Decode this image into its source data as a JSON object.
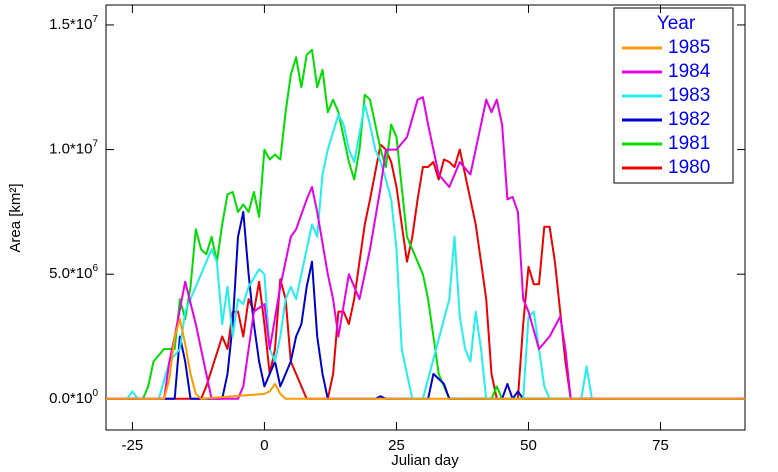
{
  "chart_data": {
    "type": "line",
    "xlabel": "Julian day",
    "ylabel": "Area [km²]",
    "legend_title": "Year",
    "legend": "upper right",
    "xlim": [
      -30,
      91
    ],
    "xticks": [
      -25,
      0,
      25,
      50,
      75
    ],
    "ylim": [
      -1250000,
      15800000
    ],
    "yticks": [
      {
        "value": 0,
        "label": "0.0*10",
        "exponent": "0"
      },
      {
        "value": 5000000,
        "label": "5.0*10",
        "exponent": "6"
      },
      {
        "value": 10000000,
        "label": "1.0*10",
        "exponent": "7"
      },
      {
        "value": 15000000,
        "label": "1.5*10",
        "exponent": "7"
      }
    ],
    "series": [
      {
        "name": "1985",
        "color": "#ff9900",
        "x": [
          -30,
          -19,
          -18,
          -17,
          -16,
          -15,
          -14,
          -13,
          -12,
          0,
          1,
          2,
          3,
          4,
          91
        ],
        "values": [
          0,
          0,
          800000,
          2500000,
          3200000,
          2200000,
          1000000,
          200000,
          0,
          200000,
          300000,
          600000,
          200000,
          0,
          0
        ]
      },
      {
        "name": "1984",
        "color": "#e600e6",
        "x": [
          -30,
          -19,
          -18,
          -17,
          -15,
          -13,
          -11,
          -10,
          -5,
          -4,
          -2,
          0,
          1,
          3,
          5,
          6,
          8,
          9,
          10,
          12,
          13,
          14,
          16,
          18,
          20,
          22,
          23,
          25,
          27,
          29,
          30,
          31,
          33,
          35,
          37,
          39,
          41,
          42,
          43,
          44,
          45,
          46,
          47,
          48,
          49,
          50,
          52,
          54,
          56,
          57,
          58,
          91
        ],
        "values": [
          0,
          0,
          1500000,
          2500000,
          4700000,
          3000000,
          1000000,
          0,
          0,
          500000,
          3500000,
          3800000,
          2000000,
          4500000,
          6500000,
          6800000,
          8000000,
          8500000,
          7500000,
          5000000,
          4000000,
          2500000,
          5000000,
          4000000,
          6000000,
          8500000,
          10000000,
          10000000,
          10500000,
          12000000,
          12100000,
          11000000,
          9000000,
          8500000,
          9500000,
          9000000,
          11000000,
          12000000,
          11500000,
          12000000,
          11000000,
          8000000,
          8100000,
          7500000,
          4000000,
          3500000,
          2000000,
          2500000,
          3300000,
          2000000,
          0,
          0
        ]
      },
      {
        "name": "1983",
        "color": "#22eeee",
        "x": [
          -30,
          -26,
          -25,
          -24,
          -20,
          -18,
          -16,
          -15,
          -13,
          -11,
          -10,
          -9,
          -8,
          -7,
          -6,
          -5,
          -4,
          -3,
          -1,
          0,
          1,
          2,
          3,
          4,
          5,
          6,
          7,
          9,
          10,
          11,
          12,
          14,
          15,
          16,
          17,
          19,
          20,
          21,
          22,
          23,
          24,
          25,
          26,
          27,
          28,
          30,
          35,
          36,
          37,
          38,
          39,
          40,
          41,
          42,
          49,
          50,
          51,
          52,
          53,
          54,
          60,
          61,
          62,
          91
        ],
        "values": [
          0,
          0,
          300000,
          0,
          0,
          1500000,
          2000000,
          3500000,
          4500000,
          5500000,
          6000000,
          5500000,
          3000000,
          4500000,
          2500000,
          4000000,
          3800000,
          4500000,
          5200000,
          5000000,
          2000000,
          1500000,
          2500000,
          4000000,
          4500000,
          4000000,
          5000000,
          7000000,
          6500000,
          9000000,
          10000000,
          11400000,
          11000000,
          10000000,
          9500000,
          11800000,
          11000000,
          10000000,
          9500000,
          8800000,
          8000000,
          6000000,
          2000000,
          1000000,
          0,
          0,
          4000000,
          6500000,
          3300000,
          2000000,
          1500000,
          3500000,
          2000000,
          0,
          0,
          3300000,
          3500000,
          2000000,
          500000,
          0,
          0,
          1300000,
          0,
          0
        ]
      },
      {
        "name": "1982",
        "color": "#0000cc",
        "x": [
          -30,
          -17,
          -16,
          -15,
          -14,
          -8,
          -7,
          -6,
          -5,
          -4,
          -3,
          -2,
          -1,
          0,
          1,
          2,
          3,
          4,
          5,
          6,
          7,
          8,
          9,
          10,
          11,
          12,
          21,
          22,
          23,
          31,
          32,
          33,
          34,
          35,
          45,
          46,
          47,
          48,
          49,
          91
        ],
        "values": [
          0,
          0,
          2500000,
          1500000,
          0,
          0,
          1000000,
          3000000,
          6500000,
          7500000,
          5000000,
          3000000,
          1500000,
          500000,
          1000000,
          1500000,
          500000,
          1000000,
          1500000,
          2500000,
          3000000,
          4500000,
          5500000,
          2500000,
          1000000,
          0,
          0,
          100000,
          0,
          0,
          1000000,
          800000,
          600000,
          0,
          0,
          600000,
          0,
          300000,
          0,
          0
        ]
      },
      {
        "name": "1981",
        "color": "#00dd00",
        "x": [
          -30,
          -23,
          -22,
          -21,
          -19,
          -17,
          -16,
          -15,
          -14,
          -13,
          -12,
          -11,
          -10,
          -9,
          -8,
          -7,
          -6,
          -5,
          -4,
          -3,
          -2,
          -1,
          0,
          1,
          2,
          3,
          4,
          5,
          6,
          7,
          8,
          9,
          10,
          11,
          12,
          13,
          14,
          15,
          16,
          17,
          18,
          19,
          20,
          21,
          22,
          23,
          24,
          25,
          26,
          27,
          28,
          29,
          30,
          31,
          32,
          33,
          34,
          35,
          43,
          44,
          45,
          91
        ],
        "values": [
          0,
          0,
          500000,
          1500000,
          2000000,
          2000000,
          4000000,
          3200000,
          4500000,
          6800000,
          6000000,
          5800000,
          6500000,
          5500000,
          7000000,
          8200000,
          8300000,
          7500000,
          7800000,
          7500000,
          8300000,
          7300000,
          10000000,
          9600000,
          9800000,
          9600000,
          11500000,
          13000000,
          13700000,
          12500000,
          13800000,
          14000000,
          12500000,
          13200000,
          11500000,
          12000000,
          11500000,
          10500000,
          9500000,
          8800000,
          10000000,
          12200000,
          12000000,
          11000000,
          10000000,
          9300000,
          11000000,
          10500000,
          8500000,
          6500000,
          6000000,
          5500000,
          5000000,
          4000000,
          2500000,
          1000000,
          500000,
          0,
          0,
          500000,
          0,
          0
        ]
      },
      {
        "name": "1980",
        "color": "#ee0000",
        "x": [
          -30,
          -12,
          -11,
          -8,
          -7,
          -6,
          -5,
          -4,
          -3,
          -2,
          -1,
          0,
          1,
          2,
          3,
          4,
          5,
          6,
          7,
          8,
          12,
          13,
          14,
          15,
          16,
          17,
          18,
          19,
          20,
          22,
          23,
          24,
          25,
          26,
          27,
          28,
          29,
          30,
          31,
          32,
          33,
          34,
          35,
          36,
          37,
          38,
          39,
          40,
          41,
          42,
          43,
          44,
          48,
          49,
          50,
          51,
          52,
          53,
          54,
          55,
          56,
          57,
          58,
          91
        ],
        "values": [
          0,
          0,
          500000,
          2500000,
          2000000,
          3500000,
          3500000,
          2500000,
          4000000,
          3500000,
          4700000,
          3000000,
          1000000,
          2000000,
          4800000,
          4000000,
          1500000,
          1000000,
          500000,
          0,
          0,
          1000000,
          3500000,
          3500000,
          3000000,
          4000000,
          5500000,
          7000000,
          8000000,
          10200000,
          10000000,
          9500000,
          8500000,
          7000000,
          5500000,
          6500000,
          8000000,
          9300000,
          9300000,
          9500000,
          8800000,
          9600000,
          9500000,
          9300000,
          10000000,
          9000000,
          8000000,
          7000000,
          5500000,
          4000000,
          1000000,
          0,
          0,
          3000000,
          5300000,
          4600000,
          4600000,
          6900000,
          6900000,
          5500000,
          3500000,
          1500000,
          0,
          0
        ]
      }
    ]
  }
}
